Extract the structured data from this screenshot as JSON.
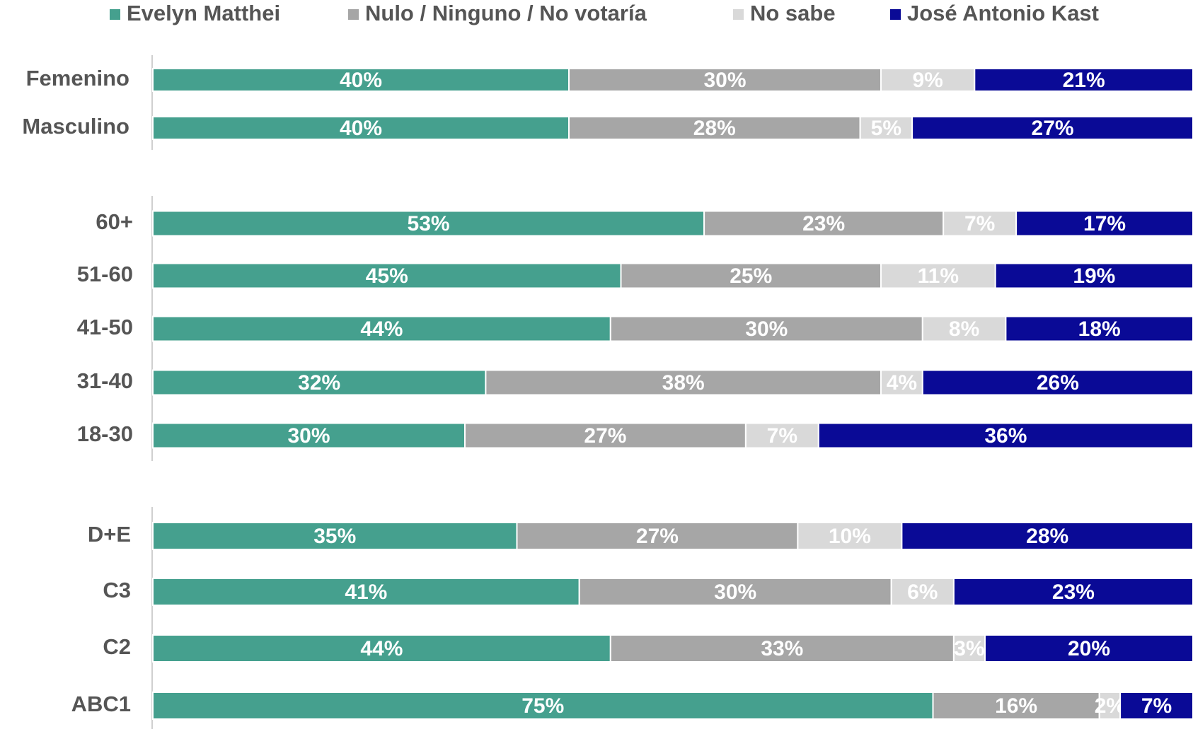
{
  "chart_data": [
    {
      "type": "bar",
      "orientation": "horizontal",
      "stacked": true,
      "xlim": [
        0,
        100
      ],
      "categories": [
        "Femenino",
        "Masculino"
      ],
      "series": [
        {
          "name": "Evelyn Matthei",
          "color": "#45a08e",
          "values": [
            40,
            40
          ],
          "value_labels": [
            "40%",
            "40%"
          ]
        },
        {
          "name": "Nulo / Ninguno / No votaría",
          "color": "#a6a6a6",
          "values": [
            30,
            28
          ],
          "value_labels": [
            "30%",
            "28%"
          ]
        },
        {
          "name": "No sabe",
          "color": "#d9d9d9",
          "values": [
            9,
            5
          ],
          "value_labels": [
            "9%",
            "5%"
          ]
        },
        {
          "name": "José Antonio Kast",
          "color": "#0a0a96",
          "values": [
            21,
            27
          ],
          "value_labels": [
            "21%",
            "27%"
          ]
        }
      ]
    },
    {
      "type": "bar",
      "orientation": "horizontal",
      "stacked": true,
      "xlim": [
        0,
        100
      ],
      "categories": [
        "60+",
        "51-60",
        "41-50",
        "31-40",
        "18-30"
      ],
      "series": [
        {
          "color": "#45a08e",
          "values": [
            53,
            45,
            44,
            32,
            30
          ],
          "value_labels": [
            "53%",
            "45%",
            "44%",
            "32%",
            "30%"
          ]
        },
        {
          "color": "#a6a6a6",
          "values": [
            23,
            25,
            30,
            38,
            27
          ],
          "value_labels": [
            "23%",
            "25%",
            "30%",
            "38%",
            "27%"
          ]
        },
        {
          "color": "#d9d9d9",
          "values": [
            7,
            11,
            8,
            4,
            7
          ],
          "value_labels": [
            "7%",
            "11%",
            "8%",
            "4%",
            "7%"
          ]
        },
        {
          "color": "#0a0a96",
          "values": [
            17,
            19,
            18,
            26,
            36
          ],
          "value_labels": [
            "17%",
            "19%",
            "18%",
            "26%",
            "36%"
          ]
        }
      ]
    },
    {
      "type": "bar",
      "orientation": "horizontal",
      "stacked": true,
      "xlim": [
        0,
        100
      ],
      "categories": [
        "D+E",
        "C3",
        "C2",
        "ABC1"
      ],
      "series": [
        {
          "color": "#45a08e",
          "values": [
            35,
            41,
            44,
            75
          ],
          "value_labels": [
            "35%",
            "41%",
            "44%",
            "75%"
          ]
        },
        {
          "color": "#a6a6a6",
          "values": [
            27,
            30,
            33,
            16
          ],
          "value_labels": [
            "27%",
            "30%",
            "33%",
            "16%"
          ]
        },
        {
          "color": "#d9d9d9",
          "values": [
            10,
            6,
            3,
            2
          ],
          "value_labels": [
            "10%",
            "6%",
            "3%",
            "2%"
          ]
        },
        {
          "color": "#0a0a96",
          "values": [
            28,
            23,
            20,
            7
          ],
          "value_labels": [
            "28%",
            "23%",
            "20%",
            "7%"
          ]
        }
      ]
    }
  ]
}
